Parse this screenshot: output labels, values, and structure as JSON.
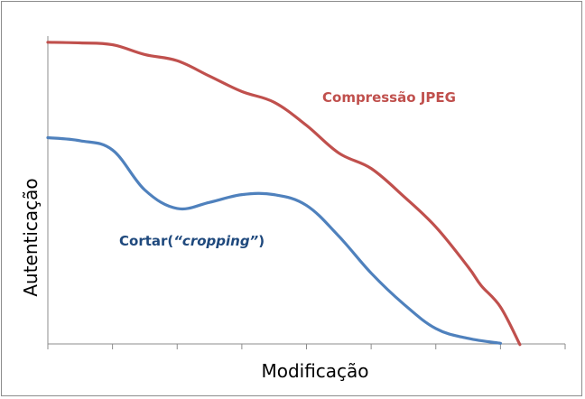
{
  "chart_data": {
    "type": "line",
    "xlabel": "Modificação",
    "ylabel": "Autenticação",
    "xlim": [
      0,
      8
    ],
    "ylim": [
      0,
      10
    ],
    "x_tick_count": 8,
    "grid": false,
    "legend": "none (inline series labels)",
    "series": [
      {
        "name": "Compressão JPEG",
        "color": "#c0504d",
        "x": [
          0,
          0.5,
          1.0,
          1.5,
          2.0,
          2.5,
          3.0,
          3.5,
          4.0,
          4.5,
          5.0,
          5.5,
          6.0,
          6.5,
          6.7,
          7.0,
          7.3
        ],
        "y": [
          9.8,
          9.78,
          9.72,
          9.4,
          9.2,
          8.7,
          8.2,
          7.85,
          7.1,
          6.2,
          5.7,
          4.8,
          3.8,
          2.5,
          1.9,
          1.2,
          -0.02
        ]
      },
      {
        "name": "Cortar(“cropping”)",
        "name_parts": [
          "Cortar(",
          "“cropping”",
          ")"
        ],
        "color": "#4f81bd",
        "x": [
          0,
          0.5,
          1.0,
          1.5,
          2.0,
          2.5,
          3.0,
          3.5,
          4.0,
          4.5,
          5.0,
          5.5,
          6.0,
          6.5,
          7.0
        ],
        "y": [
          6.7,
          6.6,
          6.3,
          5.0,
          4.4,
          4.6,
          4.85,
          4.85,
          4.5,
          3.5,
          2.3,
          1.3,
          0.5,
          0.18,
          0.02
        ]
      }
    ]
  }
}
